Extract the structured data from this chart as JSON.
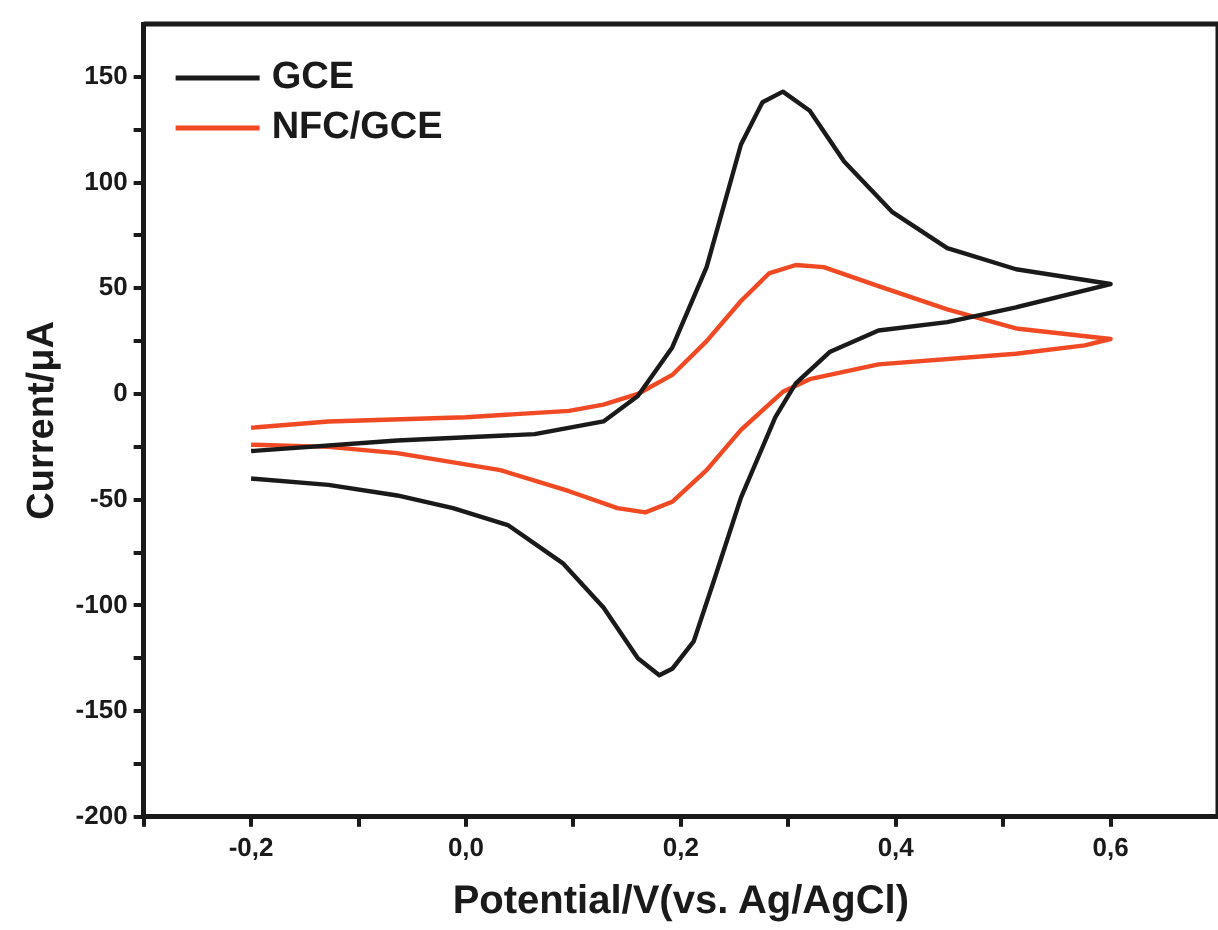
{
  "chart_data": {
    "type": "line",
    "xlabel": "Potential/V(vs. Ag/AgCl)",
    "ylabel": "Current/μA",
    "xlim": [
      -0.3,
      0.7
    ],
    "ylim": [
      -200,
      175
    ],
    "xticks": [
      {
        "value": -0.3,
        "label": null
      },
      {
        "value": -0.2,
        "label": "-0,2"
      },
      {
        "value": -0.1,
        "label": null
      },
      {
        "value": 0,
        "label": "0,0"
      },
      {
        "value": 0.1,
        "label": null
      },
      {
        "value": 0.2,
        "label": "0,2"
      },
      {
        "value": 0.3,
        "label": null
      },
      {
        "value": 0.4,
        "label": "0,4"
      },
      {
        "value": 0.5,
        "label": null
      },
      {
        "value": 0.6,
        "label": "0,6"
      }
    ],
    "yticks": [
      -200,
      {
        "value": -175,
        "label": null
      },
      -150,
      {
        "value": -125,
        "label": null
      },
      -100,
      {
        "value": -75,
        "label": null
      },
      -50,
      {
        "value": -25,
        "label": null
      },
      0,
      {
        "value": 25,
        "label": null
      },
      50,
      {
        "value": 75,
        "label": null
      },
      100,
      {
        "value": 125,
        "label": null
      },
      150
    ],
    "grid": false,
    "legend": "top left",
    "marker": "none",
    "line_style": "solid",
    "series": [
      {
        "name": "GCE",
        "color": "#1a1a1a",
        "x": [
          -0.2,
          -0.064,
          0.064,
          0.128,
          0.16,
          0.192,
          0.224,
          0.256,
          0.276,
          0.295,
          0.32,
          0.352,
          0.397,
          0.448,
          0.512,
          0.6,
          0.512,
          0.448,
          0.384,
          0.339,
          0.307,
          0.288,
          0.256,
          0.231,
          0.212,
          0.192,
          0.18,
          0.16,
          0.128,
          0.09,
          0.039,
          -0.012,
          -0.064,
          -0.128,
          -0.2
        ],
        "values": [
          -27,
          -22,
          -19,
          -13,
          -1,
          22,
          60,
          118,
          138,
          143,
          134,
          110,
          86,
          69,
          59,
          52,
          41,
          34,
          30,
          20,
          5,
          -11,
          -49,
          -88,
          -117,
          -130,
          -133,
          -125,
          -101,
          -80,
          -62,
          -54,
          -48,
          -43,
          -40
        ]
      },
      {
        "name": "NFC/GCE",
        "color": "#f04923",
        "x": [
          -0.2,
          -0.128,
          0,
          0.096,
          0.128,
          0.16,
          0.192,
          0.224,
          0.256,
          0.282,
          0.307,
          0.333,
          0.384,
          0.448,
          0.512,
          0.6,
          0.576,
          0.512,
          0.384,
          0.32,
          0.295,
          0.256,
          0.224,
          0.192,
          0.167,
          0.141,
          0.096,
          0.032,
          -0.064,
          -0.128,
          -0.2
        ],
        "values": [
          -16,
          -13,
          -11,
          -8,
          -5,
          0,
          9,
          25,
          44,
          57,
          61,
          60,
          51,
          40,
          31,
          26,
          23,
          19,
          14,
          7,
          1,
          -17,
          -36,
          -51,
          -56,
          -54,
          -46,
          -36,
          -28,
          -25,
          -24
        ]
      }
    ]
  }
}
